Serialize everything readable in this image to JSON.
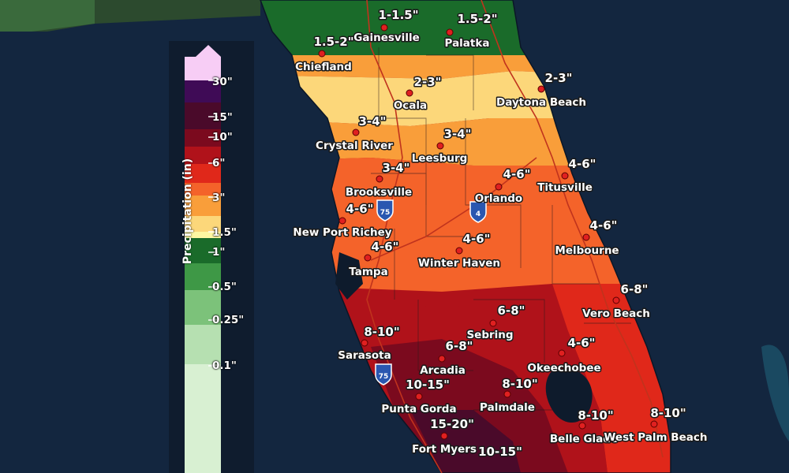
{
  "map": {
    "legend": {
      "title": "Precipitation (in)",
      "ticks": [
        "30\"",
        "15\"",
        "10\"",
        "6\"",
        "3\"",
        "1.5\"",
        "1\"",
        "0.5\"",
        "0.25\"",
        "0.1\""
      ],
      "colors": [
        "#f7cdf5",
        "#3f0b56",
        "#4a0a2a",
        "#7b0a1e",
        "#b0121a",
        "#e0281a",
        "#f4632a",
        "#f99e3a",
        "#fcd77a",
        "#fdf7a2",
        "#1a6b2a",
        "#3e9846",
        "#7cc27a",
        "#b6e0b1",
        "#d8f0d2"
      ]
    },
    "locations": [
      {
        "name": "Gainesville",
        "amount": "1-1.5\""
      },
      {
        "name": "Palatka",
        "amount": "1.5-2\""
      },
      {
        "name": "Chiefland",
        "amount": "1.5-2\""
      },
      {
        "name": "Ocala",
        "amount": "2-3\""
      },
      {
        "name": "Daytona Beach",
        "amount": "2-3\""
      },
      {
        "name": "Crystal River",
        "amount": "3-4\""
      },
      {
        "name": "Leesburg",
        "amount": "3-4\""
      },
      {
        "name": "Brooksville",
        "amount": "3-4\""
      },
      {
        "name": "Orlando",
        "amount": "4-6\""
      },
      {
        "name": "Titusville",
        "amount": "4-6\""
      },
      {
        "name": "New Port Richey",
        "amount": "4-6\""
      },
      {
        "name": "Tampa",
        "amount": "4-6\""
      },
      {
        "name": "Winter Haven",
        "amount": "4-6\""
      },
      {
        "name": "Melbourne",
        "amount": "4-6\""
      },
      {
        "name": "Vero Beach",
        "amount": "6-8\""
      },
      {
        "name": "Sebring",
        "amount": "6-8\""
      },
      {
        "name": "Sarasota",
        "amount": "8-10\""
      },
      {
        "name": "Arcadia",
        "amount": "6-8\""
      },
      {
        "name": "Okeechobee",
        "amount": "4-6\""
      },
      {
        "name": "Punta Gorda",
        "amount": "10-15\""
      },
      {
        "name": "Palmdale",
        "amount": "8-10\""
      },
      {
        "name": "Fort Myers",
        "amount": "15-20\""
      },
      {
        "name": "Belle Glade",
        "amount": "8-10\""
      },
      {
        "name": "West Palm Beach",
        "amount": "8-10\""
      },
      {
        "name": "",
        "amount": "10-15\""
      }
    ],
    "highways": [
      "75",
      "75",
      "4"
    ]
  }
}
